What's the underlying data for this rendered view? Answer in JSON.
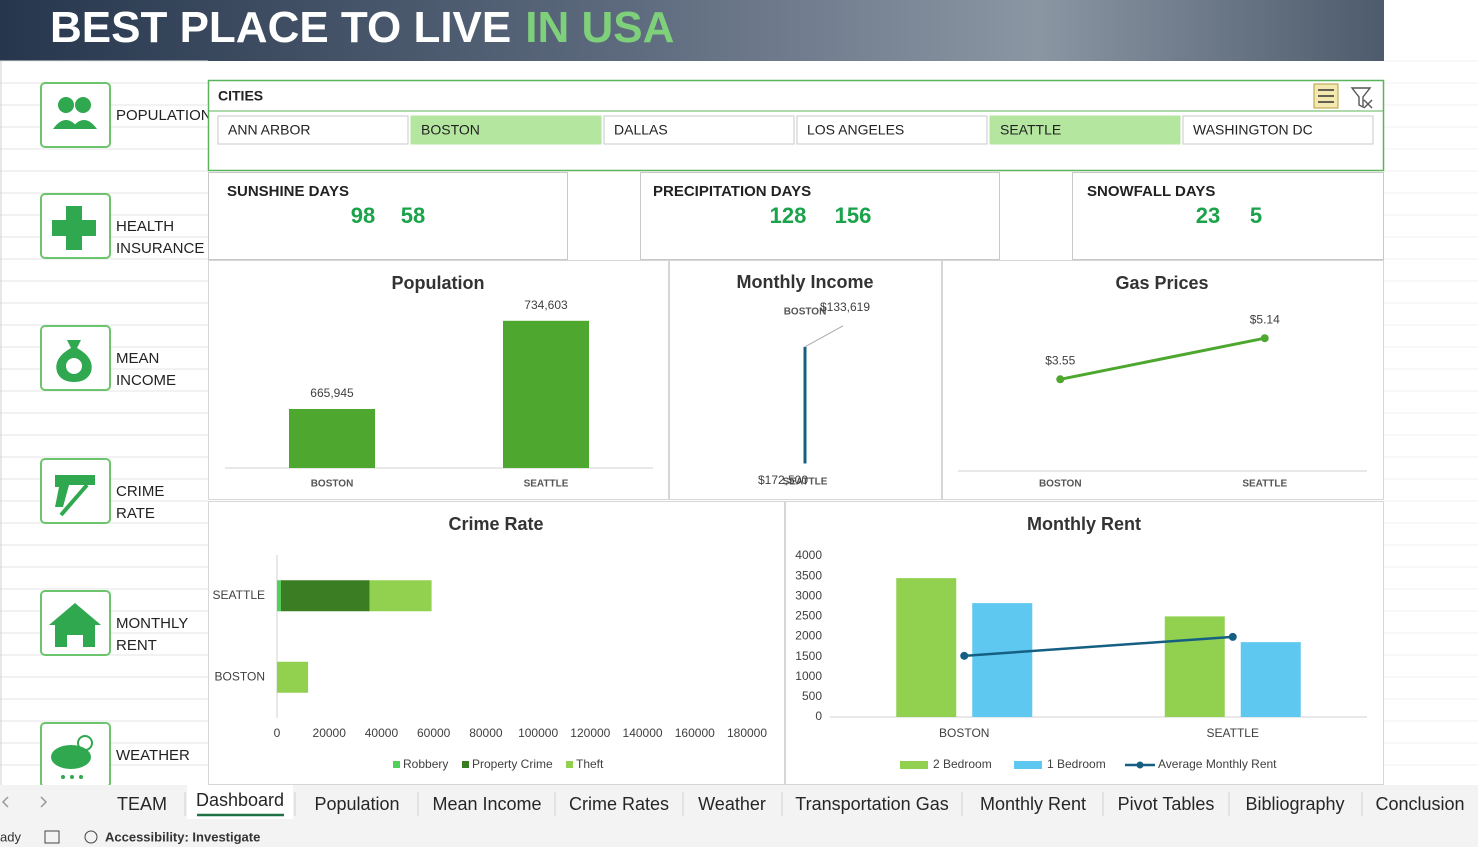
{
  "header": {
    "title": "BEST PLACE TO LIVE",
    "title_highlight": "IN USA"
  },
  "sidebar": [
    [
      "POPULATION"
    ],
    [
      "HEALTH",
      "INSURANCE"
    ],
    [
      "MEAN",
      "INCOME"
    ],
    [
      "CRIME",
      "RATE"
    ],
    [
      "MONTHLY",
      "RENT"
    ],
    [
      "WEATHER"
    ]
  ],
  "slicer": {
    "title": "CITIES",
    "items": [
      {
        "label": "ANN ARBOR",
        "selected": false
      },
      {
        "label": "BOSTON",
        "selected": true
      },
      {
        "label": "DALLAS",
        "selected": false
      },
      {
        "label": "LOS ANGELES",
        "selected": false
      },
      {
        "label": "SEATTLE",
        "selected": true
      },
      {
        "label": "WASHINGTON DC",
        "selected": false
      }
    ]
  },
  "stats": [
    {
      "label": "SUNSHINE DAYS",
      "values": [
        98,
        58
      ]
    },
    {
      "label": "PRECIPITATION DAYS",
      "values": [
        128,
        156
      ]
    },
    {
      "label": "SNOWFALL DAYS",
      "values": [
        23,
        5
      ]
    }
  ],
  "chart_data": [
    {
      "type": "bar",
      "title": "Population",
      "categories": [
        "BOSTON",
        "SEATTLE"
      ],
      "values": [
        665945,
        734603
      ],
      "value_labels": [
        "665,945",
        "734,603"
      ],
      "color": "#4ea72e",
      "ylim": [
        620000,
        750000
      ]
    },
    {
      "type": "line",
      "title": "Monthly Income",
      "categories": [
        "BOSTON",
        "SEATTLE"
      ],
      "values": [
        133619,
        172500
      ],
      "value_labels": [
        "$133,619",
        "$172,500"
      ],
      "color": "#156082",
      "ylim": [
        118000,
        178000
      ],
      "category_axis": "vertical"
    },
    {
      "type": "line",
      "title": "Gas Prices",
      "categories": [
        "BOSTON",
        "SEATTLE"
      ],
      "values": [
        3.55,
        5.14
      ],
      "value_labels": [
        "$3.55",
        "$5.14"
      ],
      "color": "#4ea72e",
      "ylim": [
        0,
        6
      ]
    },
    {
      "type": "stacked_barh",
      "title": "Crime Rate",
      "categories": [
        "BOSTON",
        "SEATTLE"
      ],
      "series": [
        {
          "name": "Robbery",
          "color": "#4fd15a",
          "values": [
            0,
            1500
          ]
        },
        {
          "name": "Property Crime",
          "color": "#3a7d22",
          "values": [
            0,
            34000
          ]
        },
        {
          "name": "Theft",
          "color": "#92d050",
          "values": [
            11900,
            23700
          ]
        }
      ],
      "xlim": [
        0,
        180000
      ],
      "xticks": [
        0,
        20000,
        40000,
        60000,
        80000,
        100000,
        120000,
        140000,
        160000,
        180000
      ]
    },
    {
      "type": "bar_line",
      "title": "Monthly Rent",
      "categories": [
        "BOSTON",
        "SEATTLE"
      ],
      "series": [
        {
          "name": "2 Bedroom",
          "color": "#92d050",
          "values": [
            3450,
            2500
          ]
        },
        {
          "name": "1 Bedroom",
          "color": "#5ec8f0",
          "values": [
            2830,
            1860
          ]
        },
        {
          "name": "Average Monthly Rent",
          "color": "#156082",
          "values": [
            1520,
            1990
          ],
          "type": "line"
        }
      ],
      "ylim": [
        0,
        4000
      ],
      "yticks": [
        0,
        500,
        1000,
        1500,
        2000,
        2500,
        3000,
        3500,
        4000
      ]
    }
  ],
  "tabs": {
    "items": [
      "TEAM",
      "Dashboard",
      "Population",
      "Mean Income",
      "Crime Rates",
      "Weather",
      "Transportation Gas",
      "Monthly Rent",
      "Pivot Tables",
      "Bibliography",
      "Conclusion"
    ],
    "active": 1
  },
  "status": {
    "mode": "ady",
    "accessibility": "Accessibility: Investigate"
  }
}
